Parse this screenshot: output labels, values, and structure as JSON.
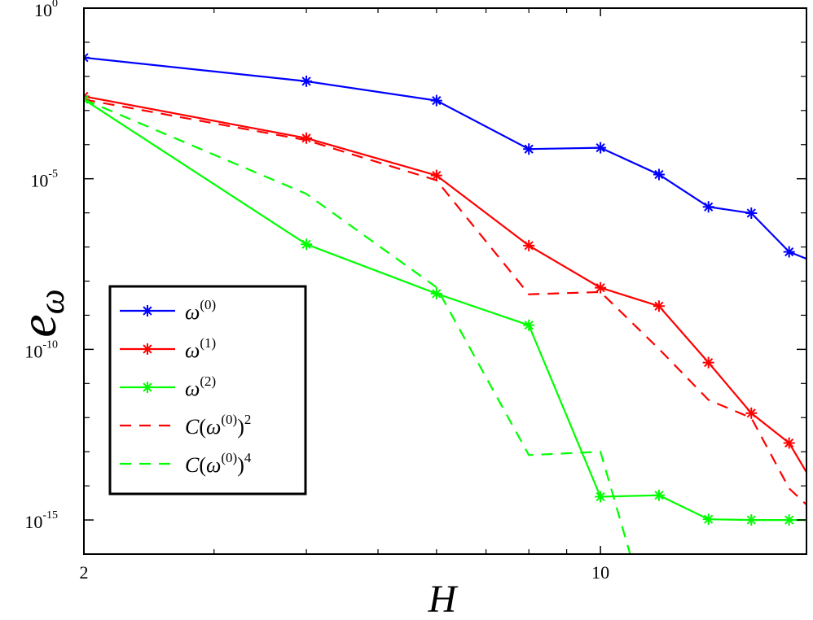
{
  "chart_data": {
    "type": "line",
    "xscale": "log",
    "yscale": "log",
    "xlabel": "H",
    "ylabel_main": "e",
    "ylabel_sub": "ω",
    "xlim": [
      2,
      19
    ],
    "ylim": [
      1e-16,
      1
    ],
    "x_ticks": [
      {
        "value": 2,
        "label": "2"
      },
      {
        "value": 10,
        "label": "10"
      }
    ],
    "x_minor_ticks": [
      3,
      4,
      5,
      6,
      7,
      8,
      9
    ],
    "y_ticks": [
      {
        "value": 1,
        "base": "10",
        "exp": "0"
      },
      {
        "value": 1e-05,
        "base": "10",
        "exp": "-5"
      },
      {
        "value": 1e-10,
        "base": "10",
        "exp": "-10"
      },
      {
        "value": 1e-15,
        "base": "10",
        "exp": "-15"
      }
    ],
    "series": [
      {
        "name": "ω(0)",
        "legend_base": "ω",
        "legend_sup": "(0)",
        "color": "#0000ff",
        "style": "solid",
        "marker": "asterisk",
        "x": [
          2,
          4,
          6,
          8,
          10,
          12,
          14,
          16,
          18,
          20
        ],
        "y": [
          0.0355,
          0.0072,
          0.00195,
          7.4e-05,
          8.1e-05,
          1.33e-05,
          1.5e-06,
          9.8e-07,
          7.2e-08,
          2.9e-08
        ]
      },
      {
        "name": "ω(1)",
        "legend_base": "ω",
        "legend_sup": "(1)",
        "color": "#ff0000",
        "style": "solid",
        "marker": "asterisk",
        "x": [
          2,
          4,
          6,
          8,
          10,
          12,
          14,
          16,
          18,
          20
        ],
        "y": [
          0.0026,
          0.000155,
          1.25e-05,
          1.1e-07,
          6.4e-09,
          1.85e-09,
          4.1e-11,
          1.35e-12,
          1.8e-13,
          3.9e-15
        ]
      },
      {
        "name": "ω(2)",
        "legend_base": "ω",
        "legend_sup": "(2)",
        "color": "#00ff00",
        "style": "solid",
        "marker": "asterisk",
        "x": [
          2,
          4,
          6,
          8,
          10,
          12,
          14,
          16,
          18,
          20
        ],
        "y": [
          0.0021,
          1.2e-07,
          4.3e-09,
          5.1e-10,
          4.8e-15,
          5.3e-15,
          1.05e-15,
          1e-15,
          1e-15,
          1e-15
        ]
      },
      {
        "name": "C(ω(0))^2",
        "legend_pre": "C(",
        "legend_base": "ω",
        "legend_sup": "(0)",
        "legend_post": ")",
        "legend_pow": "2",
        "color": "#ff0000",
        "style": "dashed",
        "marker": "none",
        "x": [
          2,
          4,
          6,
          8,
          10,
          12,
          14,
          16,
          18,
          20
        ],
        "y": [
          0.0021,
          0.000135,
          9e-06,
          4.1e-09,
          4.8e-09,
          1.03e-10,
          3.3e-12,
          9.8e-13,
          8.4e-15,
          1e-15
        ]
      },
      {
        "name": "C(ω(0))^4",
        "legend_pre": "C(",
        "legend_base": "ω",
        "legend_sup": "(0)",
        "legend_post": ")",
        "legend_pow": "4",
        "color": "#00ff00",
        "style": "dashed",
        "marker": "none",
        "x": [
          2,
          4,
          6,
          8,
          10,
          11
        ],
        "y": [
          0.0021,
          3.6e-06,
          6.6e-09,
          8e-14,
          1e-13,
          8e-17
        ]
      }
    ],
    "legend_position": "bottom-left",
    "grid": false
  }
}
